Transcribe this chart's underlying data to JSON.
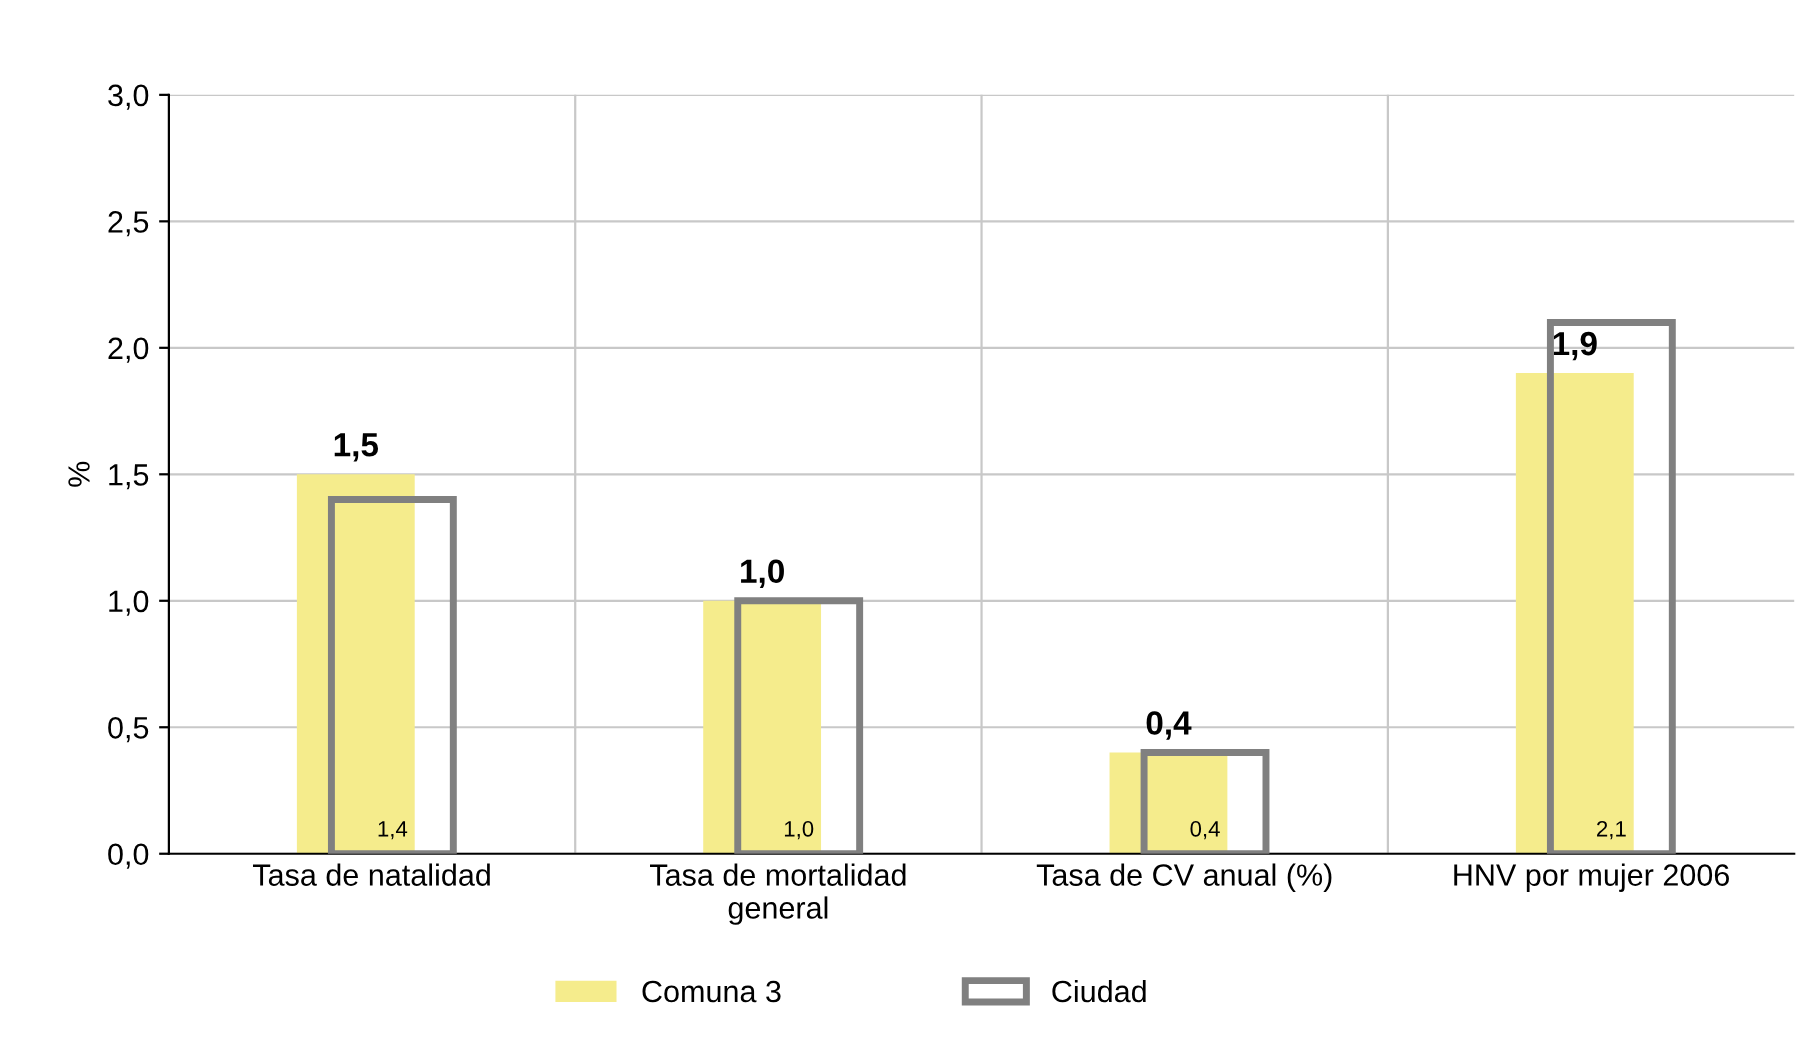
{
  "chart_data": {
    "type": "bar",
    "ylabel": "%",
    "categories": [
      "Tasa de natalidad",
      "Tasa de mortalidad\ngeneral",
      "Tasa de CV anual (%)",
      "HNV por mujer 2006"
    ],
    "series": [
      {
        "name": "Comuna 3",
        "color": "#f5ec8c",
        "values": [
          1.5,
          1.0,
          0.4,
          1.9
        ],
        "value_labels": [
          "1,5",
          "1,0",
          "0,4",
          "1,9"
        ]
      },
      {
        "name": "Ciudad",
        "color": "#808080",
        "values": [
          1.4,
          1.0,
          0.4,
          2.1
        ],
        "value_labels": [
          "1,4",
          "1,0",
          "0,4",
          "2,1"
        ]
      }
    ],
    "ylim": [
      0,
      3
    ],
    "yticks": [
      {
        "value": 0,
        "label": "0,0"
      },
      {
        "value": 0.5,
        "label": "0,5"
      },
      {
        "value": 1,
        "label": "1,0"
      },
      {
        "value": 1.5,
        "label": "1,5"
      },
      {
        "value": 2,
        "label": "2,0"
      },
      {
        "value": 2.5,
        "label": "2,5"
      },
      {
        "value": 3,
        "label": "3,0"
      }
    ],
    "grid": true,
    "legend": "bottom"
  }
}
